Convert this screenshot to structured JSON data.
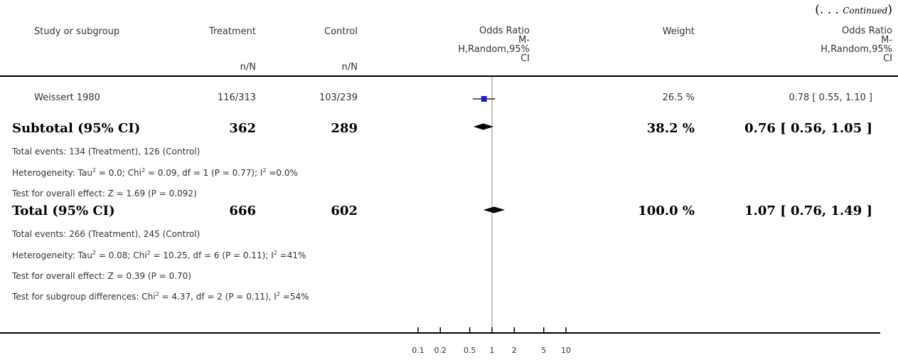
{
  "continued": {
    "ellipsis": "(. . . ",
    "word": "Continued",
    "close": ")"
  },
  "header": {
    "study": "Study or subgroup",
    "treatment": "Treatment",
    "treatment_unit": "n/N",
    "control": "Control",
    "control_unit": "n/N",
    "or_plot": [
      "Odds Ratio",
      "M-",
      "H,Random,95%",
      "CI"
    ],
    "weight": "Weight",
    "or_text": [
      "Odds Ratio",
      "M-",
      "H,Random,95%",
      "CI"
    ]
  },
  "rows": {
    "study1": {
      "name": "Weissert 1980",
      "treatment": "116/313",
      "control": "103/239",
      "weight": "26.5 %",
      "ci": "0.78 [ 0.55, 1.10 ]"
    },
    "subtotal": {
      "label": "Subtotal (95% CI)",
      "treatment": "362",
      "control": "289",
      "weight": "38.2 %",
      "ci": "0.76 [ 0.56, 1.05 ]"
    },
    "subtotal_events": "Total events: 134 (Treatment), 126 (Control)",
    "subtotal_het": {
      "prefix": "Heterogeneity: Tau",
      "sup1": "2",
      "mid1": " = 0.0; Chi",
      "sup2": "2",
      "mid2": " = 0.09, df = 1 (P = 0.77); I",
      "sup3": "2",
      "end": " =0.0%"
    },
    "subtotal_test": "Test for overall effect: Z = 1.69 (P = 0.092)",
    "total": {
      "label": "Total (95% CI)",
      "treatment": "666",
      "control": "602",
      "weight": "100.0 %",
      "ci": "1.07 [ 0.76, 1.49 ]"
    },
    "total_events": "Total events: 266 (Treatment), 245 (Control)",
    "total_het": {
      "prefix": "Heterogeneity: Tau",
      "sup1": "2",
      "mid1": " = 0.08; Chi",
      "sup2": "2",
      "mid2": " = 10.25, df = 6 (P = 0.11); I",
      "sup3": "2",
      "end": " =41%"
    },
    "total_test": "Test for overall effect: Z = 0.39 (P = 0.70)",
    "subgroup_diff": {
      "prefix": "Test for subgroup differences: Chi",
      "sup1": "2",
      "mid1": " = 4.37, df = 2 (P = 0.11), I",
      "sup2": "2",
      "end": " =54%"
    }
  },
  "colors": {
    "study_marker": "#1a1adb",
    "diamond": "#000000"
  },
  "chart_data": {
    "type": "forest",
    "scale": "log",
    "xlim": [
      0.1,
      10
    ],
    "null_line": 1,
    "ticks": [
      "0.1",
      "0.2",
      "0.5",
      "1",
      "2",
      "5",
      "10"
    ],
    "tick_values": [
      0.1,
      0.2,
      0.5,
      1,
      2,
      5,
      10
    ],
    "studies": [
      {
        "name": "Weissert 1980",
        "or": 0.78,
        "lower": 0.55,
        "upper": 1.1,
        "weight": 26.5
      }
    ],
    "pooled": [
      {
        "name": "Subtotal (95% CI)",
        "or": 0.76,
        "lower": 0.56,
        "upper": 1.05
      },
      {
        "name": "Total (95% CI)",
        "or": 1.07,
        "lower": 0.76,
        "upper": 1.49
      }
    ]
  }
}
